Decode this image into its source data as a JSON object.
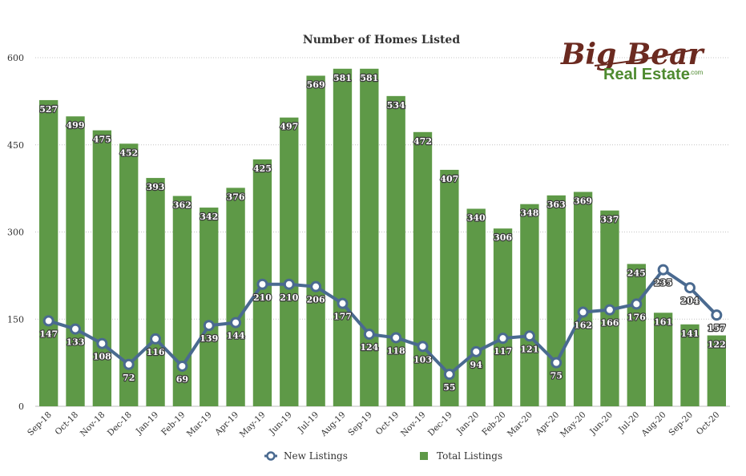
{
  "chart_data": {
    "type": "bar",
    "title": "Number of Homes Listed",
    "categories": [
      "Sep-18",
      "Oct-18",
      "Nov-18",
      "Dec-18",
      "Jan-19",
      "Feb-19",
      "Mar-19",
      "Apr-19",
      "May-19",
      "Jun-19",
      "Jul-19",
      "Aug-19",
      "Sep-19",
      "Oct-19",
      "Nov-19",
      "Dec-19",
      "Jan-20",
      "Feb-20",
      "Mar-20",
      "Apr-20",
      "May-20",
      "Jun-20",
      "Jul-20",
      "Aug-20",
      "Sep-20",
      "Oct-20"
    ],
    "ylim": [
      0,
      600
    ],
    "yticks": [
      0,
      150,
      300,
      450,
      600
    ],
    "grid": true,
    "legend_position": "bottom",
    "series": [
      {
        "name": "New Listings",
        "type": "line",
        "color": "#4a6a90",
        "values": [
          147,
          133,
          108,
          72,
          116,
          69,
          139,
          144,
          210,
          210,
          206,
          177,
          124,
          118,
          103,
          55,
          94,
          117,
          121,
          75,
          162,
          166,
          176,
          235,
          204,
          157
        ]
      },
      {
        "name": "Total Listings",
        "type": "bar",
        "color": "#5e9947",
        "values": [
          527,
          499,
          475,
          452,
          393,
          362,
          342,
          376,
          425,
          497,
          569,
          581,
          581,
          534,
          472,
          407,
          340,
          306,
          348,
          363,
          369,
          337,
          245,
          161,
          141,
          122
        ]
      }
    ]
  },
  "logo": {
    "line1": "Big Bear",
    "line2": "Real Estate",
    "suffix": ".com"
  }
}
